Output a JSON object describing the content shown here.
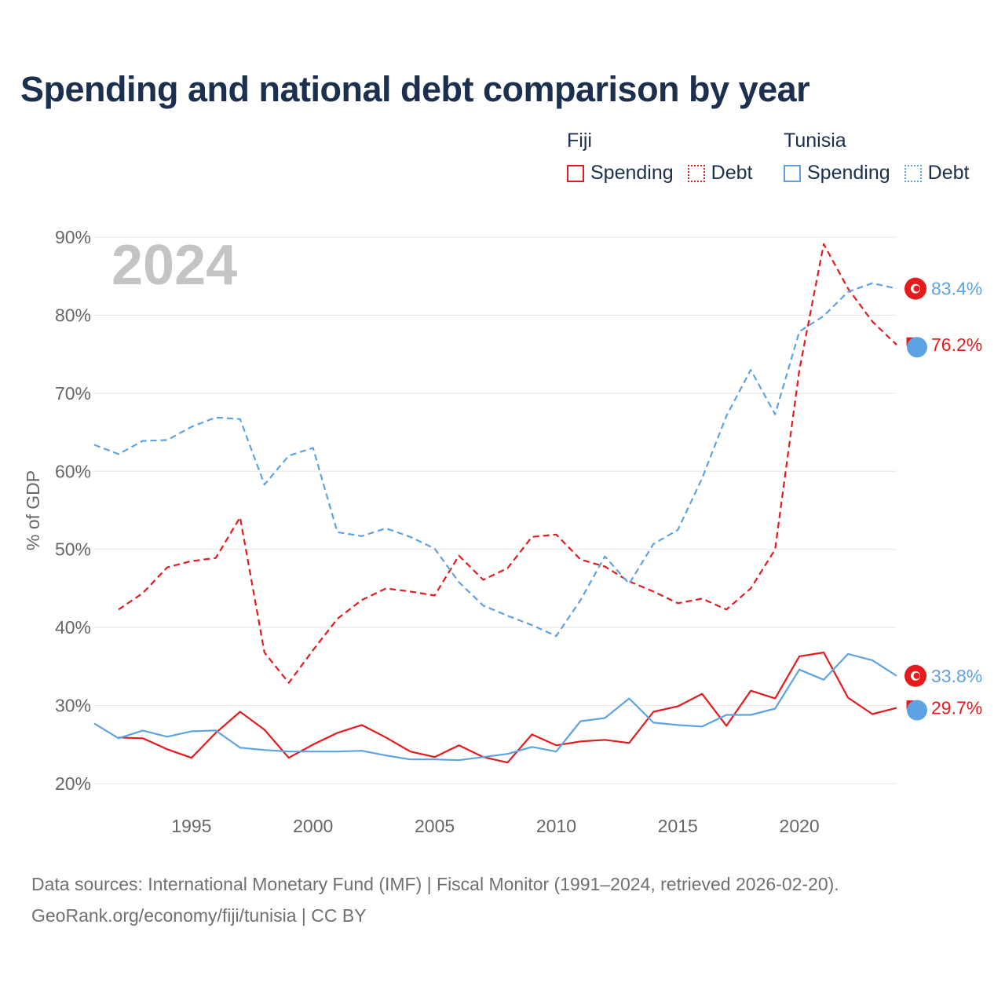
{
  "title": "Spending and national debt comparison by year",
  "legend": {
    "groups": [
      {
        "country": "Fiji",
        "items": [
          "Spending",
          "Debt"
        ]
      },
      {
        "country": "Tunisia",
        "items": [
          "Spending",
          "Debt"
        ]
      }
    ]
  },
  "year_watermark": "2024",
  "source": {
    "line1": "Data sources: International Monetary Fund (IMF) | Fiscal Monitor (1991–2024, retrieved 2026-02-20).",
    "line2": "GeoRank.org/economy/fiji/tunisia | CC BY"
  },
  "colors": {
    "fiji": "#e41a1c",
    "tunisia": "#5da3e3",
    "text": "#1b2f4f",
    "axis": "#666666",
    "grid": "#e6e6e6"
  },
  "chart_data": {
    "type": "line",
    "title": "Spending and national debt comparison by year",
    "xlabel": "",
    "ylabel": "% of GDP",
    "xlim": [
      1991,
      2024
    ],
    "ylim": [
      20,
      90
    ],
    "xticks": [
      1995,
      2000,
      2005,
      2010,
      2015,
      2020
    ],
    "yticks": [
      20,
      30,
      40,
      50,
      60,
      70,
      80,
      90
    ],
    "ytick_labels": [
      "20%",
      "30%",
      "40%",
      "50%",
      "60%",
      "70%",
      "80%",
      "90%"
    ],
    "series": [
      {
        "name": "Fiji Spending",
        "country": "Fiji",
        "metric": "Spending",
        "style": "solid",
        "x": [
          1992,
          1993,
          1994,
          1995,
          1996,
          1997,
          1998,
          1999,
          2000,
          2001,
          2002,
          2003,
          2004,
          2005,
          2006,
          2007,
          2008,
          2009,
          2010,
          2011,
          2012,
          2013,
          2014,
          2015,
          2016,
          2017,
          2018,
          2019,
          2020,
          2021,
          2022,
          2023,
          2024
        ],
        "values": [
          25.9,
          25.8,
          24.4,
          23.3,
          26.5,
          29.2,
          26.9,
          23.3,
          25.0,
          26.5,
          27.5,
          25.9,
          24.1,
          23.4,
          24.9,
          23.4,
          22.7,
          26.3,
          24.9,
          25.4,
          25.6,
          25.2,
          29.2,
          29.9,
          31.5,
          27.4,
          31.9,
          30.9,
          36.3,
          36.8,
          31.0,
          28.9,
          29.7
        ],
        "end_label": "29.7%"
      },
      {
        "name": "Fiji Debt",
        "country": "Fiji",
        "metric": "Debt",
        "style": "dashed",
        "x": [
          1992,
          1993,
          1994,
          1995,
          1996,
          1997,
          1998,
          1999,
          2000,
          2001,
          2002,
          2003,
          2004,
          2005,
          2006,
          2007,
          2008,
          2009,
          2010,
          2011,
          2012,
          2013,
          2014,
          2015,
          2016,
          2017,
          2018,
          2019,
          2020,
          2021,
          2022,
          2023,
          2024
        ],
        "values": [
          42.3,
          44.4,
          47.7,
          48.5,
          48.9,
          54.1,
          36.8,
          32.9,
          37.1,
          41.1,
          43.5,
          45.0,
          44.6,
          44.1,
          49.2,
          46.1,
          47.6,
          51.6,
          51.9,
          48.7,
          47.8,
          45.9,
          44.6,
          43.1,
          43.7,
          42.3,
          45.0,
          50.0,
          73.0,
          89.1,
          83.4,
          79.2,
          76.2
        ],
        "end_label": "76.2%"
      },
      {
        "name": "Tunisia Spending",
        "country": "Tunisia",
        "metric": "Spending",
        "style": "solid",
        "x": [
          1991,
          1992,
          1993,
          1994,
          1995,
          1996,
          1997,
          1998,
          1999,
          2000,
          2001,
          2002,
          2003,
          2004,
          2005,
          2006,
          2007,
          2008,
          2009,
          2010,
          2011,
          2012,
          2013,
          2014,
          2015,
          2016,
          2017,
          2018,
          2019,
          2020,
          2021,
          2022,
          2023,
          2024
        ],
        "values": [
          27.7,
          25.8,
          26.8,
          26.0,
          26.7,
          26.8,
          24.6,
          24.3,
          24.1,
          24.1,
          24.1,
          24.2,
          23.6,
          23.1,
          23.1,
          23.0,
          23.4,
          23.8,
          24.7,
          24.1,
          28.0,
          28.4,
          30.9,
          27.8,
          27.5,
          27.3,
          28.8,
          28.8,
          29.6,
          34.6,
          33.3,
          36.6,
          35.8,
          33.8
        ],
        "end_label": "33.8%"
      },
      {
        "name": "Tunisia Debt",
        "country": "Tunisia",
        "metric": "Debt",
        "style": "dashed",
        "x": [
          1991,
          1992,
          1993,
          1994,
          1995,
          1996,
          1997,
          1998,
          1999,
          2000,
          2001,
          2002,
          2003,
          2004,
          2005,
          2006,
          2007,
          2008,
          2009,
          2010,
          2011,
          2012,
          2013,
          2014,
          2015,
          2016,
          2017,
          2018,
          2019,
          2020,
          2021,
          2022,
          2023,
          2024
        ],
        "values": [
          63.4,
          62.2,
          63.9,
          64.0,
          65.7,
          66.9,
          66.7,
          58.3,
          62.0,
          63.0,
          52.2,
          51.7,
          52.7,
          51.6,
          50.1,
          45.8,
          42.8,
          41.5,
          40.3,
          38.9,
          43.5,
          49.1,
          45.6,
          50.7,
          52.5,
          59.1,
          67.1,
          73.0,
          67.3,
          77.9,
          79.9,
          83.0,
          84.1,
          83.4
        ],
        "end_label": "83.4%"
      }
    ]
  }
}
